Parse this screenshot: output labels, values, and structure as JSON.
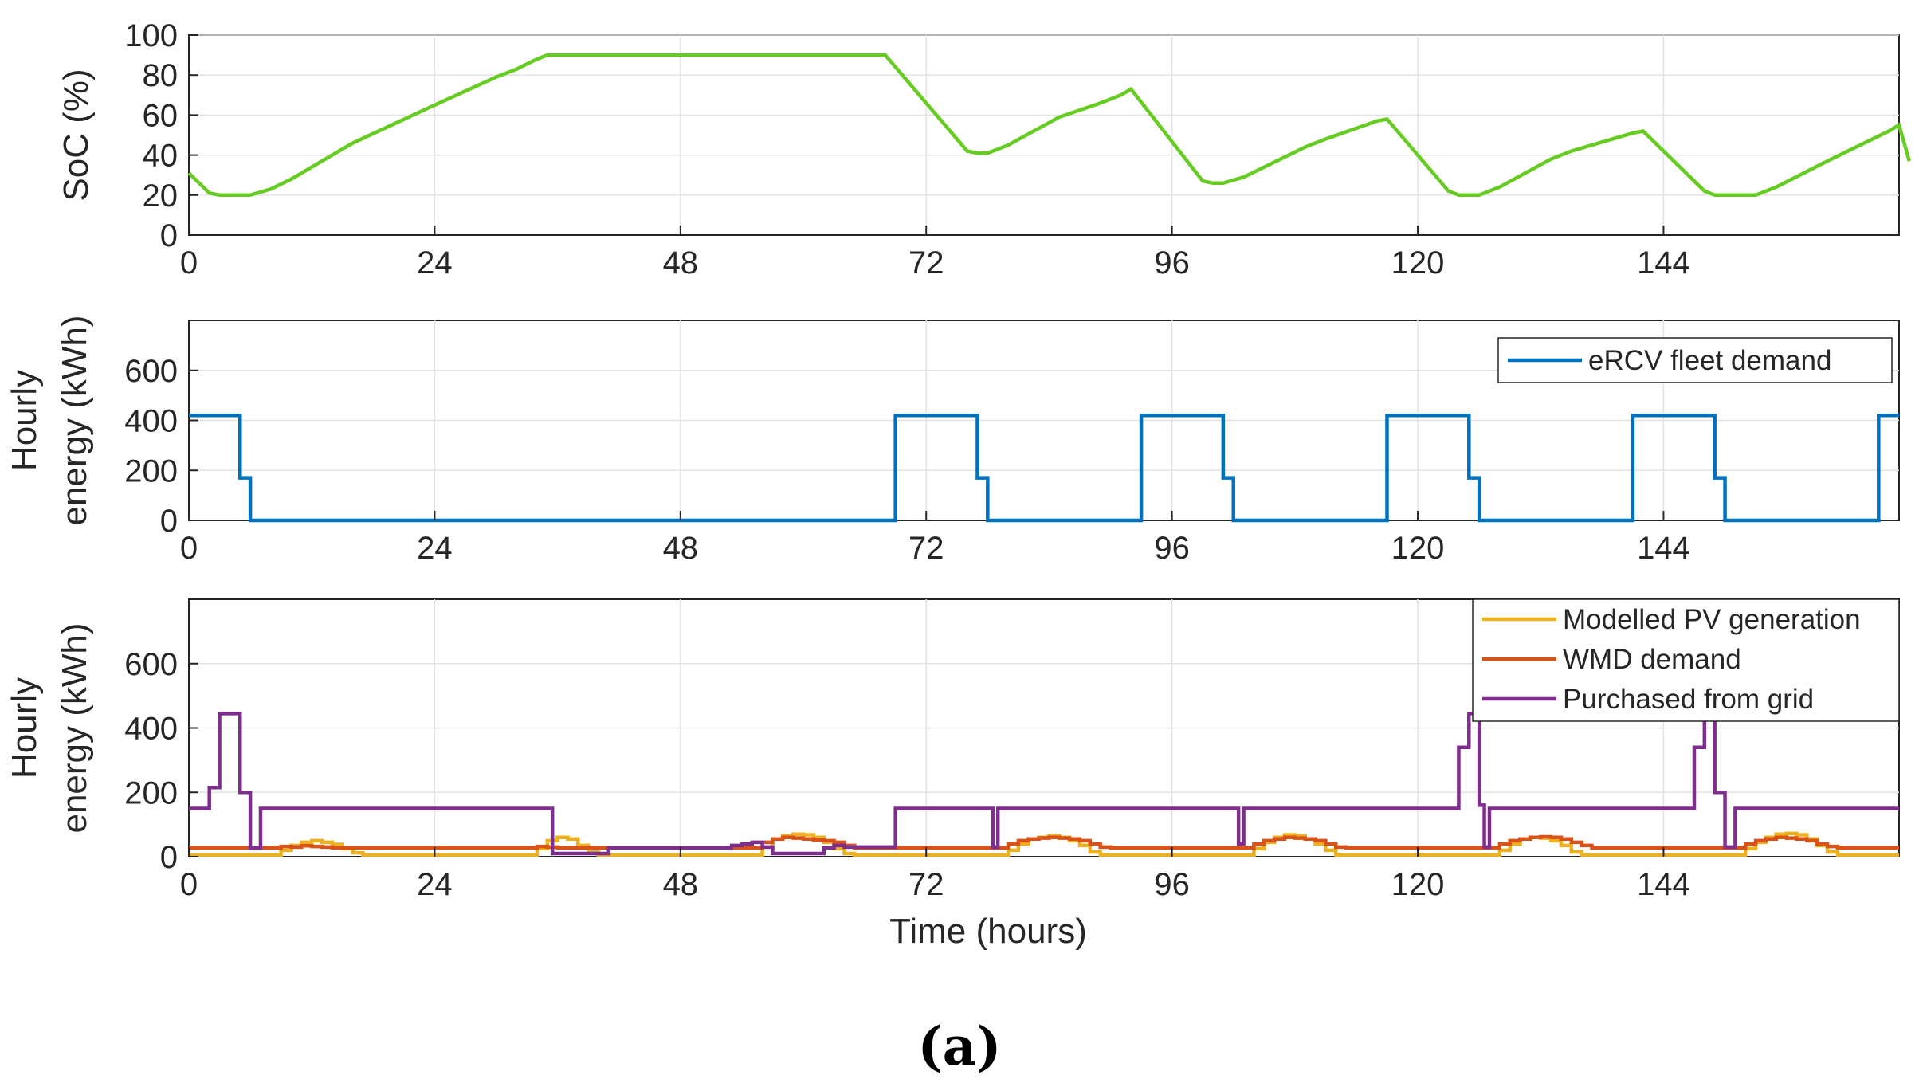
{
  "chart_data": [
    {
      "type": "line",
      "ylabel": [
        "SoC (%)"
      ],
      "ylim": [
        0,
        100
      ],
      "yticks": [
        0,
        20,
        40,
        60,
        80,
        100
      ],
      "xlim": [
        0,
        167
      ],
      "xticks": [
        0,
        24,
        48,
        72,
        96,
        120,
        144
      ],
      "grid": true,
      "series": [
        {
          "name": "SoC",
          "color": "#66cc22",
          "step": false,
          "points": [
            [
              0,
              31
            ],
            [
              2,
              21
            ],
            [
              3,
              20
            ],
            [
              6,
              20
            ],
            [
              8,
              23
            ],
            [
              10,
              28
            ],
            [
              14,
              40
            ],
            [
              16,
              46
            ],
            [
              24,
              65
            ],
            [
              30,
              79
            ],
            [
              32,
              83
            ],
            [
              34,
              88
            ],
            [
              35,
              90
            ],
            [
              68,
              90
            ],
            [
              76,
              42
            ],
            [
              77,
              41
            ],
            [
              78,
              41
            ],
            [
              80,
              45
            ],
            [
              85,
              59
            ],
            [
              89,
              66
            ],
            [
              91,
              70
            ],
            [
              92,
              73
            ],
            [
              99,
              27
            ],
            [
              100,
              26
            ],
            [
              101,
              26
            ],
            [
              103,
              29
            ],
            [
              109,
              44
            ],
            [
              111,
              48
            ],
            [
              116,
              57
            ],
            [
              117,
              58
            ],
            [
              123,
              22
            ],
            [
              124,
              20
            ],
            [
              126,
              20
            ],
            [
              128,
              24
            ],
            [
              133,
              38
            ],
            [
              135,
              42
            ],
            [
              141,
              51
            ],
            [
              142,
              52
            ],
            [
              148,
              22
            ],
            [
              149,
              20
            ],
            [
              153,
              20
            ],
            [
              155,
              24
            ],
            [
              160,
              37
            ],
            [
              162,
              42
            ],
            [
              166,
              52
            ],
            [
              167,
              55
            ],
            [
              168,
              37
            ]
          ]
        }
      ]
    },
    {
      "type": "line",
      "ylabel": [
        "Hourly",
        "energy (kWh)"
      ],
      "ylim": [
        0,
        800
      ],
      "yticks": [
        0,
        200,
        400,
        600
      ],
      "xlim": [
        0,
        167
      ],
      "xticks": [
        0,
        24,
        48,
        72,
        96,
        120,
        144
      ],
      "grid": true,
      "legend_position": "top-right",
      "series": [
        {
          "name": "eRCV fleet demand",
          "color": "#0072bd",
          "step": true,
          "points": [
            [
              0,
              420
            ],
            [
              5,
              170
            ],
            [
              6,
              0
            ],
            [
              69,
              420
            ],
            [
              77,
              170
            ],
            [
              78,
              0
            ],
            [
              93,
              420
            ],
            [
              101,
              170
            ],
            [
              102,
              0
            ],
            [
              117,
              420
            ],
            [
              125,
              170
            ],
            [
              126,
              0
            ],
            [
              141,
              420
            ],
            [
              149,
              170
            ],
            [
              150,
              0
            ],
            [
              165,
              420
            ],
            [
              167,
              420
            ]
          ]
        }
      ]
    },
    {
      "type": "line",
      "ylabel": [
        "Hourly",
        "energy (kWh)"
      ],
      "xlabel": "Time (hours)",
      "ylim": [
        0,
        800
      ],
      "yticks": [
        0,
        200,
        400,
        600
      ],
      "xlim": [
        0,
        167
      ],
      "xticks": [
        0,
        24,
        48,
        72,
        96,
        120,
        144
      ],
      "grid": true,
      "legend_position": "top-right",
      "series": [
        {
          "name": "Modelled PV generation",
          "color": "#edb120",
          "step": true,
          "points": [
            [
              0,
              5
            ],
            [
              8,
              5
            ],
            [
              9,
              20
            ],
            [
              10,
              35
            ],
            [
              11,
              45
            ],
            [
              12,
              50
            ],
            [
              13,
              45
            ],
            [
              14,
              38
            ],
            [
              15,
              25
            ],
            [
              16,
              12
            ],
            [
              17,
              5
            ],
            [
              33,
              5
            ],
            [
              34,
              25
            ],
            [
              35,
              50
            ],
            [
              36,
              60
            ],
            [
              37,
              55
            ],
            [
              38,
              35
            ],
            [
              39,
              15
            ],
            [
              40,
              5
            ],
            [
              55,
              5
            ],
            [
              56,
              30
            ],
            [
              57,
              55
            ],
            [
              58,
              65
            ],
            [
              59,
              70
            ],
            [
              60,
              68
            ],
            [
              61,
              60
            ],
            [
              62,
              45
            ],
            [
              63,
              25
            ],
            [
              64,
              10
            ],
            [
              65,
              5
            ],
            [
              79,
              5
            ],
            [
              80,
              20
            ],
            [
              81,
              40
            ],
            [
              82,
              55
            ],
            [
              83,
              60
            ],
            [
              84,
              65
            ],
            [
              85,
              60
            ],
            [
              86,
              50
            ],
            [
              87,
              35
            ],
            [
              88,
              15
            ],
            [
              89,
              5
            ],
            [
              103,
              5
            ],
            [
              104,
              25
            ],
            [
              105,
              45
            ],
            [
              106,
              60
            ],
            [
              107,
              68
            ],
            [
              108,
              65
            ],
            [
              109,
              55
            ],
            [
              110,
              40
            ],
            [
              111,
              20
            ],
            [
              112,
              5
            ],
            [
              127,
              5
            ],
            [
              128,
              20
            ],
            [
              129,
              40
            ],
            [
              130,
              55
            ],
            [
              131,
              60
            ],
            [
              132,
              58
            ],
            [
              133,
              50
            ],
            [
              134,
              35
            ],
            [
              135,
              15
            ],
            [
              136,
              5
            ],
            [
              151,
              5
            ],
            [
              152,
              25
            ],
            [
              153,
              45
            ],
            [
              154,
              60
            ],
            [
              155,
              70
            ],
            [
              156,
              72
            ],
            [
              157,
              68
            ],
            [
              158,
              55
            ],
            [
              159,
              35
            ],
            [
              160,
              15
            ],
            [
              161,
              5
            ],
            [
              167,
              5
            ]
          ]
        },
        {
          "name": "WMD demand",
          "color": "#d95319",
          "step": true,
          "points": [
            [
              0,
              28
            ],
            [
              8,
              28
            ],
            [
              9,
              32
            ],
            [
              10,
              30
            ],
            [
              11,
              34
            ],
            [
              12,
              32
            ],
            [
              13,
              30
            ],
            [
              14,
              28
            ],
            [
              33,
              28
            ],
            [
              34,
              32
            ],
            [
              35,
              30
            ],
            [
              36,
              28
            ],
            [
              55,
              28
            ],
            [
              56,
              45
            ],
            [
              57,
              55
            ],
            [
              58,
              60
            ],
            [
              59,
              58
            ],
            [
              60,
              55
            ],
            [
              61,
              52
            ],
            [
              62,
              50
            ],
            [
              63,
              45
            ],
            [
              64,
              35
            ],
            [
              65,
              28
            ],
            [
              79,
              28
            ],
            [
              80,
              40
            ],
            [
              81,
              50
            ],
            [
              82,
              55
            ],
            [
              83,
              58
            ],
            [
              84,
              60
            ],
            [
              85,
              58
            ],
            [
              86,
              55
            ],
            [
              87,
              50
            ],
            [
              88,
              40
            ],
            [
              89,
              30
            ],
            [
              90,
              28
            ],
            [
              103,
              28
            ],
            [
              104,
              40
            ],
            [
              105,
              50
            ],
            [
              106,
              55
            ],
            [
              107,
              60
            ],
            [
              108,
              58
            ],
            [
              109,
              55
            ],
            [
              110,
              50
            ],
            [
              111,
              40
            ],
            [
              112,
              30
            ],
            [
              113,
              28
            ],
            [
              127,
              28
            ],
            [
              128,
              40
            ],
            [
              129,
              50
            ],
            [
              130,
              55
            ],
            [
              131,
              60
            ],
            [
              132,
              62
            ],
            [
              133,
              60
            ],
            [
              134,
              55
            ],
            [
              135,
              45
            ],
            [
              136,
              35
            ],
            [
              137,
              28
            ],
            [
              151,
              28
            ],
            [
              152,
              40
            ],
            [
              153,
              50
            ],
            [
              154,
              55
            ],
            [
              155,
              60
            ],
            [
              156,
              58
            ],
            [
              157,
              55
            ],
            [
              158,
              50
            ],
            [
              159,
              40
            ],
            [
              160,
              32
            ],
            [
              161,
              28
            ],
            [
              167,
              28
            ]
          ]
        },
        {
          "name": "Purchased from grid",
          "color": "#7e2f8e",
          "step": true,
          "points": [
            [
              0,
              150
            ],
            [
              2,
              215
            ],
            [
              3,
              445
            ],
            [
              5,
              200
            ],
            [
              6,
              28
            ],
            [
              7,
              150
            ],
            [
              35,
              150
            ],
            [
              35.5,
              10
            ],
            [
              40,
              10
            ],
            [
              41,
              28
            ],
            [
              51,
              28
            ],
            [
              53,
              35
            ],
            [
              54,
              40
            ],
            [
              55,
              45
            ],
            [
              56,
              30
            ],
            [
              57,
              10
            ],
            [
              61,
              10
            ],
            [
              62,
              28
            ],
            [
              63,
              35
            ],
            [
              64,
              30
            ],
            [
              69,
              150
            ],
            [
              78,
              150
            ],
            [
              78.5,
              30
            ],
            [
              79,
              150
            ],
            [
              102,
              150
            ],
            [
              102.5,
              40
            ],
            [
              103,
              150
            ],
            [
              123,
              150
            ],
            [
              124,
              340
            ],
            [
              125,
              445
            ],
            [
              126,
              160
            ],
            [
              126.5,
              30
            ],
            [
              127,
              150
            ],
            [
              146,
              150
            ],
            [
              147,
              340
            ],
            [
              148,
              445
            ],
            [
              149,
              200
            ],
            [
              150,
              30
            ],
            [
              151,
              150
            ],
            [
              167,
              150
            ]
          ]
        }
      ]
    }
  ],
  "caption": "(a)"
}
